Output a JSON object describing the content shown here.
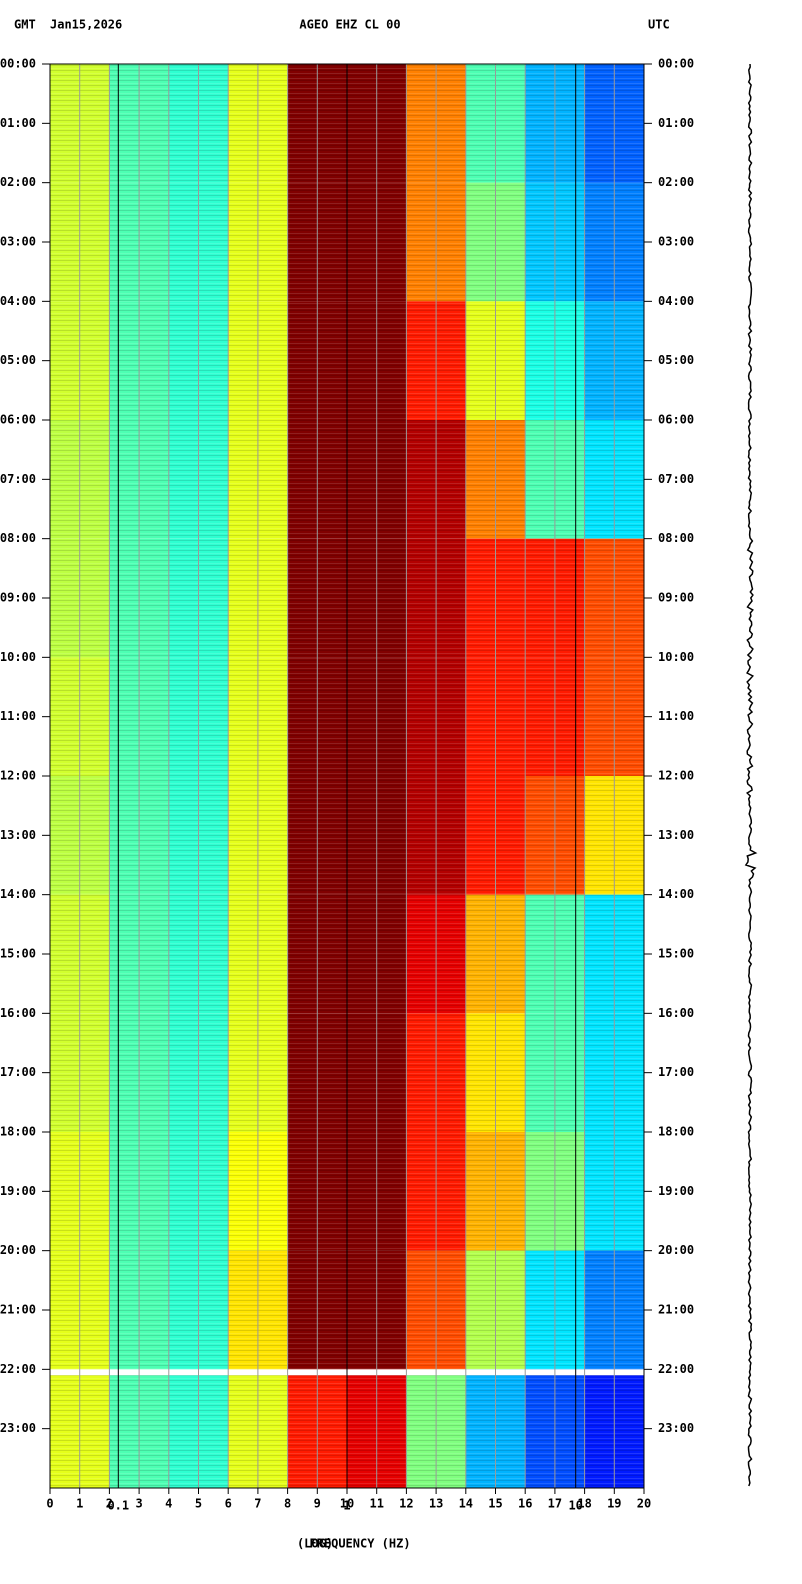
{
  "chart_data": {
    "type": "spectrogram",
    "title": "AGEO EHZ CL 00",
    "left_label": "GMT",
    "date": "Jan15,2026",
    "right_label": "UTC",
    "xlabel": "FREQUENCY (HZ)",
    "xlabel_prefix": "(LOG)",
    "xlim": [
      0,
      20
    ],
    "xticks": [
      0,
      1,
      2,
      3,
      4,
      5,
      6,
      7,
      8,
      9,
      10,
      11,
      12,
      13,
      14,
      15,
      16,
      17,
      18,
      19,
      20
    ],
    "log_xticks": [
      {
        "value": 2.3,
        "label": "0.1"
      },
      {
        "value": 10,
        "label": "1"
      },
      {
        "value": 17.7,
        "label": "10"
      }
    ],
    "ylim": [
      0,
      24
    ],
    "yticks": [
      {
        "value": 0,
        "label": "00:00"
      },
      {
        "value": 1,
        "label": "01:00"
      },
      {
        "value": 2,
        "label": "02:00"
      },
      {
        "value": 3,
        "label": "03:00"
      },
      {
        "value": 4,
        "label": "04:00"
      },
      {
        "value": 5,
        "label": "05:00"
      },
      {
        "value": 6,
        "label": "06:00"
      },
      {
        "value": 7,
        "label": "07:00"
      },
      {
        "value": 8,
        "label": "08:00"
      },
      {
        "value": 9,
        "label": "09:00"
      },
      {
        "value": 10,
        "label": "10:00"
      },
      {
        "value": 11,
        "label": "11:00"
      },
      {
        "value": 12,
        "label": "12:00"
      },
      {
        "value": 13,
        "label": "13:00"
      },
      {
        "value": 14,
        "label": "14:00"
      },
      {
        "value": 15,
        "label": "15:00"
      },
      {
        "value": 16,
        "label": "16:00"
      },
      {
        "value": 17,
        "label": "17:00"
      },
      {
        "value": 18,
        "label": "18:00"
      },
      {
        "value": 19,
        "label": "19:00"
      },
      {
        "value": 20,
        "label": "20:00"
      },
      {
        "value": 21,
        "label": "21:00"
      },
      {
        "value": 22,
        "label": "22:00"
      },
      {
        "value": 23,
        "label": "23:00"
      }
    ],
    "row_edges": [
      0,
      2,
      4,
      6,
      8,
      10,
      12,
      14,
      16,
      18,
      20,
      22,
      24
    ],
    "col_edges": [
      0,
      2,
      4,
      6,
      8,
      10,
      12,
      14,
      16,
      18,
      20
    ],
    "zlim": [
      0,
      1
    ],
    "values": [
      [
        0.58,
        0.45,
        0.42,
        0.6,
        1,
        1,
        0.75,
        0.45,
        0.3,
        0.22
      ],
      [
        0.58,
        0.45,
        0.42,
        0.6,
        1,
        1,
        0.75,
        0.5,
        0.32,
        0.25
      ],
      [
        0.58,
        0.45,
        0.42,
        0.6,
        1,
        1,
        0.85,
        0.6,
        0.4,
        0.3
      ],
      [
        0.56,
        0.45,
        0.42,
        0.6,
        1,
        1,
        0.95,
        0.75,
        0.45,
        0.35
      ],
      [
        0.56,
        0.45,
        0.42,
        0.6,
        1,
        1,
        0.95,
        0.85,
        0.85,
        0.8
      ],
      [
        0.58,
        0.45,
        0.42,
        0.6,
        1,
        1,
        0.95,
        0.85,
        0.85,
        0.8
      ],
      [
        0.56,
        0.45,
        0.42,
        0.6,
        1,
        1,
        0.95,
        0.85,
        0.8,
        0.65
      ],
      [
        0.58,
        0.45,
        0.42,
        0.6,
        1,
        1,
        0.9,
        0.7,
        0.45,
        0.35
      ],
      [
        0.58,
        0.45,
        0.42,
        0.6,
        1,
        1,
        0.85,
        0.65,
        0.45,
        0.35
      ],
      [
        0.6,
        0.45,
        0.42,
        0.62,
        1,
        1,
        0.85,
        0.7,
        0.5,
        0.35
      ],
      [
        0.6,
        0.45,
        0.42,
        0.65,
        1,
        1,
        0.8,
        0.55,
        0.35,
        0.25
      ],
      [
        0.6,
        0.45,
        0.42,
        0.6,
        0.85,
        0.9,
        0.5,
        0.3,
        0.2,
        0.15
      ]
    ],
    "gap": [
      22,
      22.1
    ]
  }
}
